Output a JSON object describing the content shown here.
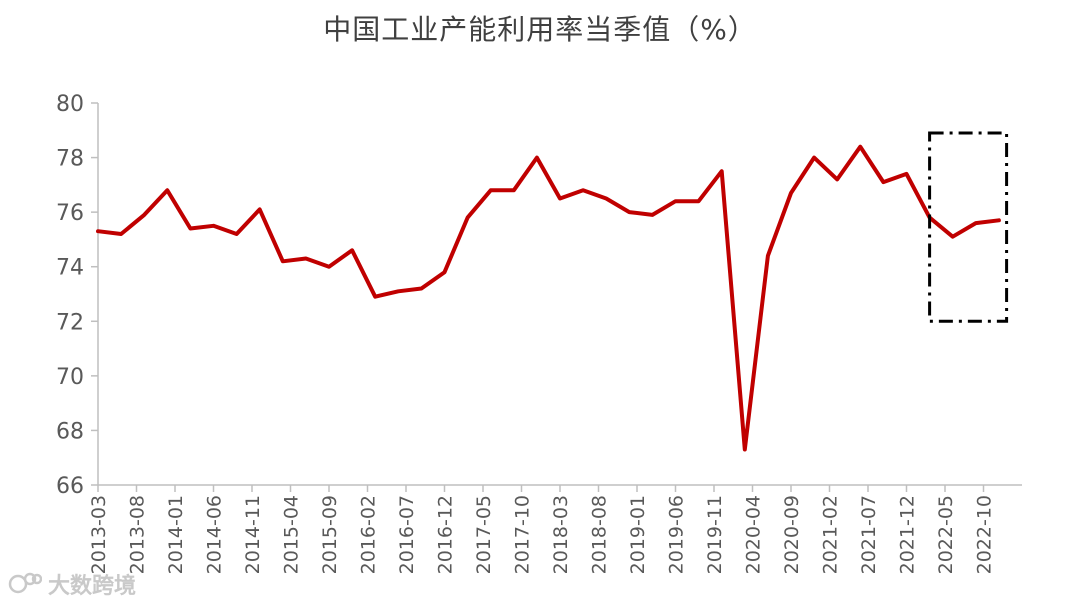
{
  "chart_data": {
    "type": "line",
    "title": "中国工业产能利用率当季值（%）",
    "xlabel": "",
    "ylabel": "",
    "ylim": [
      66,
      80
    ],
    "yticks": [
      66,
      68,
      70,
      72,
      74,
      76,
      78,
      80
    ],
    "grid": false,
    "legend": "none",
    "x_tick_labels": [
      "2013-03",
      "2013-08",
      "2014-01",
      "2014-06",
      "2014-11",
      "2015-04",
      "2015-09",
      "2016-02",
      "2016-07",
      "2016-12",
      "2017-05",
      "2017-10",
      "2018-03",
      "2018-08",
      "2019-01",
      "2019-06",
      "2019-11",
      "2020-04",
      "2020-09",
      "2021-02",
      "2021-07",
      "2021-12",
      "2022-05",
      "2022-10"
    ],
    "x": [
      "2013-03",
      "2013-06",
      "2013-09",
      "2013-12",
      "2014-03",
      "2014-06",
      "2014-09",
      "2014-12",
      "2015-03",
      "2015-06",
      "2015-09",
      "2015-12",
      "2016-03",
      "2016-06",
      "2016-09",
      "2016-12",
      "2017-03",
      "2017-06",
      "2017-09",
      "2017-12",
      "2018-03",
      "2018-06",
      "2018-09",
      "2018-12",
      "2019-03",
      "2019-06",
      "2019-09",
      "2019-12",
      "2020-03",
      "2020-06",
      "2020-09",
      "2020-12",
      "2021-03",
      "2021-06",
      "2021-09",
      "2021-12",
      "2022-03",
      "2022-06",
      "2022-09",
      "2022-12"
    ],
    "series": [
      {
        "color": "#c00000",
        "values": [
          75.3,
          75.2,
          75.9,
          76.8,
          75.4,
          75.5,
          75.2,
          76.1,
          74.2,
          74.3,
          74.0,
          74.6,
          72.9,
          73.1,
          73.2,
          73.8,
          75.8,
          76.8,
          76.8,
          78.0,
          76.5,
          76.8,
          76.5,
          76.0,
          75.9,
          76.4,
          76.4,
          77.5,
          67.3,
          74.4,
          76.7,
          78.0,
          77.2,
          78.4,
          77.1,
          77.4,
          75.8,
          75.1,
          75.6,
          75.7
        ]
      }
    ],
    "annotations": [
      {
        "type": "dash-dot-rectangle",
        "from_x": "2022-03",
        "to_x": "2023-01",
        "ymin": 72.0,
        "ymax": 78.9,
        "color": "#000000"
      }
    ]
  },
  "watermark": {
    "text": "大数跨境"
  }
}
